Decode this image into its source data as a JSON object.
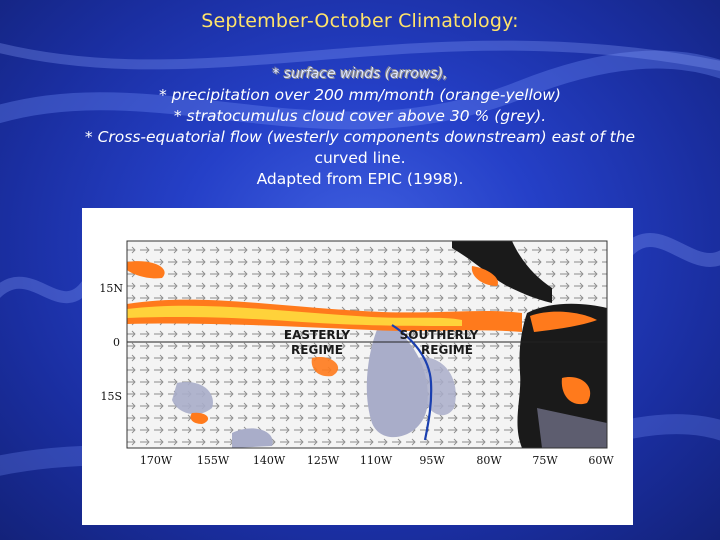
{
  "slide": {
    "title": "September-October Climatology:",
    "lines": [
      "* surface winds (arrows),",
      "* precipitation over 200 mm/month (orange-yellow)",
      "* stratocumulus cloud cover above 30 % (grey).",
      "* Cross-equatorial flow (westerly components downstream) east of the",
      "curved line.",
      "Adapted from EPIC (1998)."
    ]
  },
  "map": {
    "lat_labels": [
      "15N",
      "0",
      "15S"
    ],
    "lon_labels": [
      "170W",
      "155W",
      "140W",
      "125W",
      "110W",
      "95W",
      "80W",
      "75W",
      "60W"
    ],
    "regime_easterly": [
      "EASTERLY",
      "REGIME"
    ],
    "regime_southerly": [
      "SOUTHERLY",
      "REGIME"
    ],
    "colors": {
      "precip": "#ff7a1c",
      "precip_core": "#ffd23a",
      "land": "#1a1a1a",
      "cloud": "#a9adc9",
      "sea": "#ffffff",
      "line": "#1a3fb0"
    }
  }
}
